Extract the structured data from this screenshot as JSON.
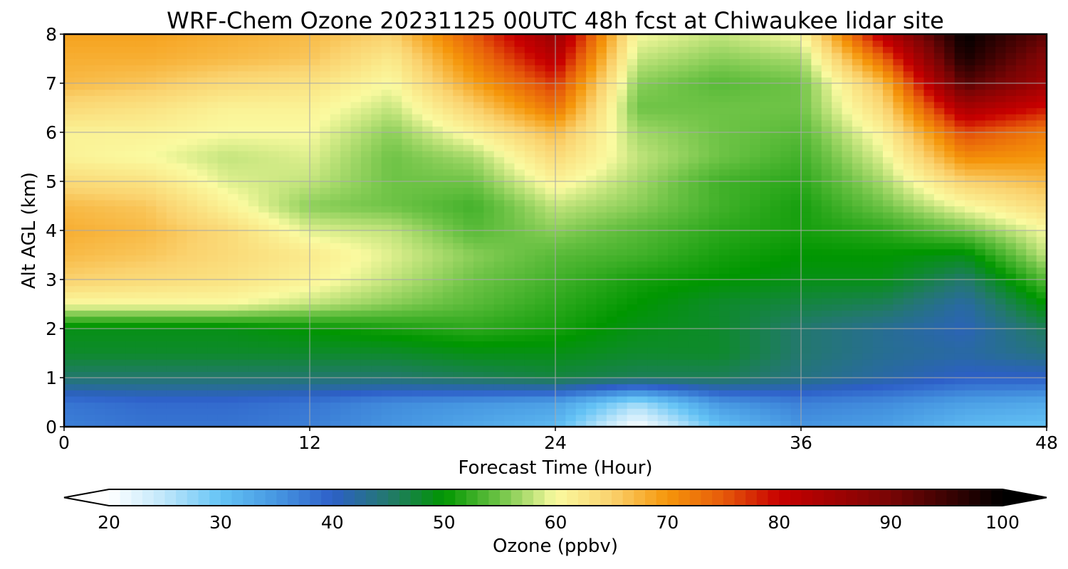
{
  "chart_data": {
    "type": "heatmap",
    "title": "WRF-Chem Ozone  20231125 00UTC 48h fcst at Chiwaukee lidar site",
    "xlabel": "Forecast Time (Hour)",
    "ylabel": "Alt AGL (km)",
    "xlim": [
      0,
      48
    ],
    "ylim": [
      0,
      8
    ],
    "xticks": [
      0,
      12,
      24,
      36,
      48
    ],
    "yticks": [
      0,
      1,
      2,
      3,
      4,
      5,
      6,
      7,
      8
    ],
    "grid": true,
    "x_hours": [
      0,
      4,
      8,
      12,
      16,
      20,
      24,
      28,
      32,
      36,
      40,
      44,
      48
    ],
    "y_km": [
      0,
      0.5,
      1,
      1.5,
      2,
      2.5,
      3,
      3.5,
      4,
      4.5,
      5,
      5.5,
      6,
      6.5,
      7,
      7.5,
      8
    ],
    "ozone_ppbv": [
      [
        37,
        38,
        38,
        37,
        35,
        33,
        31,
        20,
        30,
        35,
        34,
        31,
        30
      ],
      [
        38,
        39,
        39,
        38,
        36,
        35,
        34,
        27,
        35,
        37,
        36,
        34,
        33
      ],
      [
        45,
        45,
        45,
        45,
        45,
        46,
        47,
        46,
        46,
        44,
        42,
        40,
        40
      ],
      [
        48,
        48,
        48,
        48,
        48,
        49,
        49,
        48,
        48,
        45,
        43,
        42,
        44
      ],
      [
        49,
        49,
        49,
        50,
        51,
        52,
        51,
        49,
        48,
        45,
        43,
        41,
        46
      ],
      [
        60,
        60,
        60,
        58,
        56,
        54,
        52,
        50,
        48,
        47,
        46,
        42,
        50
      ],
      [
        65,
        64,
        63,
        61,
        58,
        55,
        53,
        51,
        50,
        49,
        49,
        45,
        54
      ],
      [
        67,
        66,
        64,
        62,
        59,
        56,
        54,
        53,
        51,
        50,
        50,
        49,
        58
      ],
      [
        68,
        67,
        64,
        59,
        58,
        54,
        56,
        54,
        52,
        51,
        52,
        55,
        60
      ],
      [
        67,
        66,
        61,
        56,
        55,
        53,
        58,
        56,
        53,
        51,
        55,
        60,
        64
      ],
      [
        64,
        63,
        59,
        58,
        55,
        55,
        61,
        57,
        53,
        52,
        57,
        65,
        67
      ],
      [
        61,
        60,
        58,
        59,
        55,
        57,
        64,
        58,
        55,
        53,
        59,
        71,
        70
      ],
      [
        61,
        61,
        60,
        60,
        56,
        61,
        67,
        57,
        55,
        54,
        61,
        76,
        72
      ],
      [
        64,
        63,
        61,
        61,
        58,
        65,
        73,
        55,
        55,
        55,
        64,
        84,
        79
      ],
      [
        67,
        66,
        64,
        63,
        60,
        69,
        77,
        56,
        54,
        55,
        67,
        93,
        85
      ],
      [
        68,
        68,
        67,
        66,
        62,
        72,
        82,
        58,
        56,
        57,
        74,
        98,
        88
      ],
      [
        69,
        69,
        68,
        67,
        65,
        75,
        86,
        60,
        58,
        60,
        82,
        100,
        92
      ]
    ],
    "colorbar": {
      "label": "Ozone  (ppbv)",
      "ticks": [
        20,
        30,
        40,
        50,
        60,
        70,
        80,
        90,
        100
      ],
      "min": 20,
      "max": 100,
      "extend": "both"
    }
  }
}
